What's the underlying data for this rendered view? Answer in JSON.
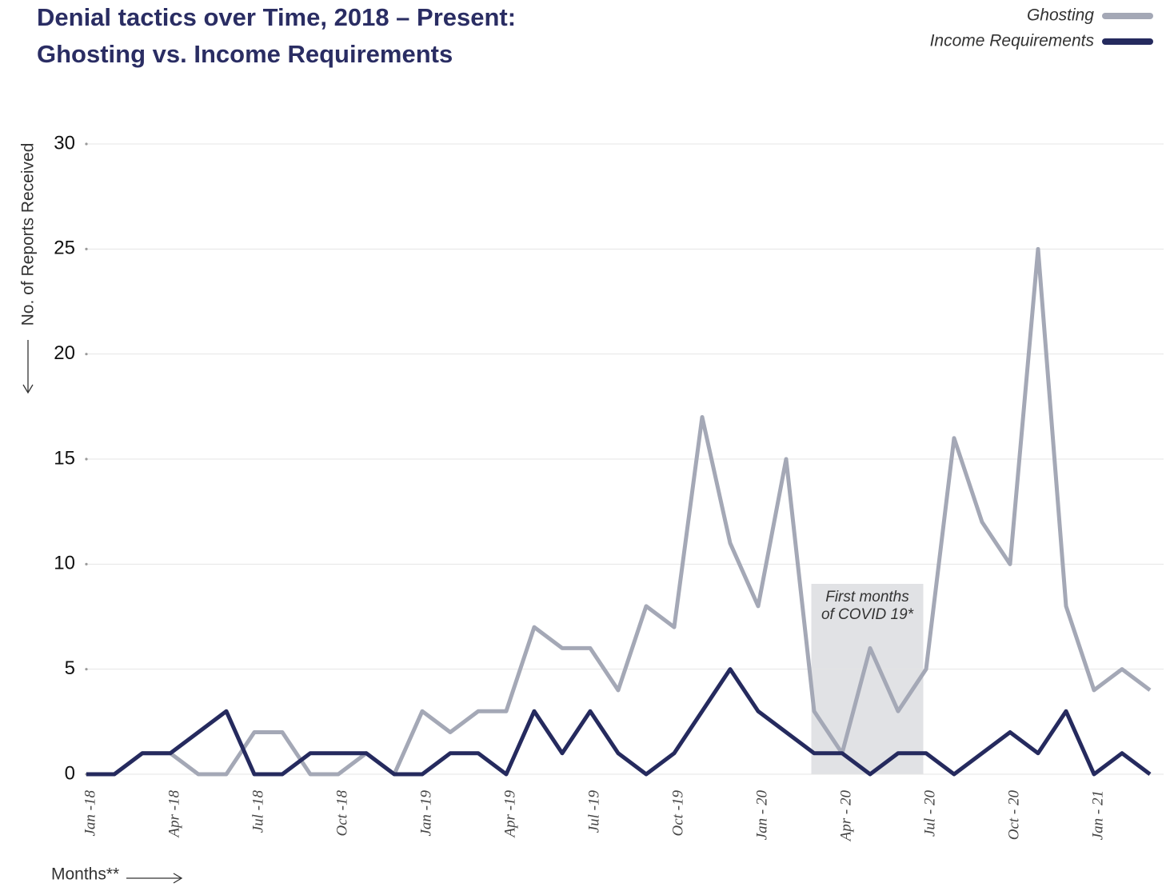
{
  "chart_data": {
    "type": "line",
    "title": [
      "Denial tactics over Time, 2018 – Present:",
      "Ghosting vs. Income Requirements"
    ],
    "y_label": "No. of Reports Received",
    "x_label": "Months**",
    "annotation": [
      "First months",
      "of COVID 19*"
    ],
    "categories": [
      "Jan -18",
      null,
      null,
      "Apr -18",
      null,
      null,
      "Jul -18",
      null,
      null,
      "Oct -18",
      null,
      null,
      "Jan -19",
      null,
      null,
      "Apr -19",
      null,
      null,
      "Jul -19",
      null,
      null,
      "Oct -19",
      null,
      null,
      "Jan - 20",
      null,
      null,
      "Apr - 20",
      null,
      null,
      "Jul - 20",
      null,
      null,
      "Oct - 20",
      null,
      null,
      "Jan - 21",
      null,
      null
    ],
    "series": [
      {
        "name": "Ghosting",
        "color": "#a4a8b6",
        "values": [
          0,
          0,
          1,
          1,
          0,
          0,
          2,
          2,
          0,
          0,
          1,
          0,
          3,
          2,
          3,
          3,
          7,
          6,
          6,
          4,
          8,
          7,
          17,
          11,
          8,
          15,
          3,
          1,
          6,
          3,
          5,
          16,
          12,
          10,
          25,
          8,
          4,
          5,
          4
        ]
      },
      {
        "name": "Income Requirements",
        "color": "#252a5e",
        "values": [
          0,
          0,
          1,
          1,
          2,
          3,
          0,
          0,
          1,
          1,
          1,
          0,
          0,
          1,
          1,
          0,
          3,
          1,
          3,
          1,
          0,
          1,
          3,
          5,
          3,
          2,
          1,
          1,
          0,
          1,
          1,
          0,
          1,
          2,
          1,
          3,
          0,
          1,
          0
        ]
      }
    ],
    "ylim": [
      0,
      30
    ],
    "yticks": [
      0,
      5,
      10,
      15,
      20,
      25,
      30
    ],
    "grid": true
  }
}
